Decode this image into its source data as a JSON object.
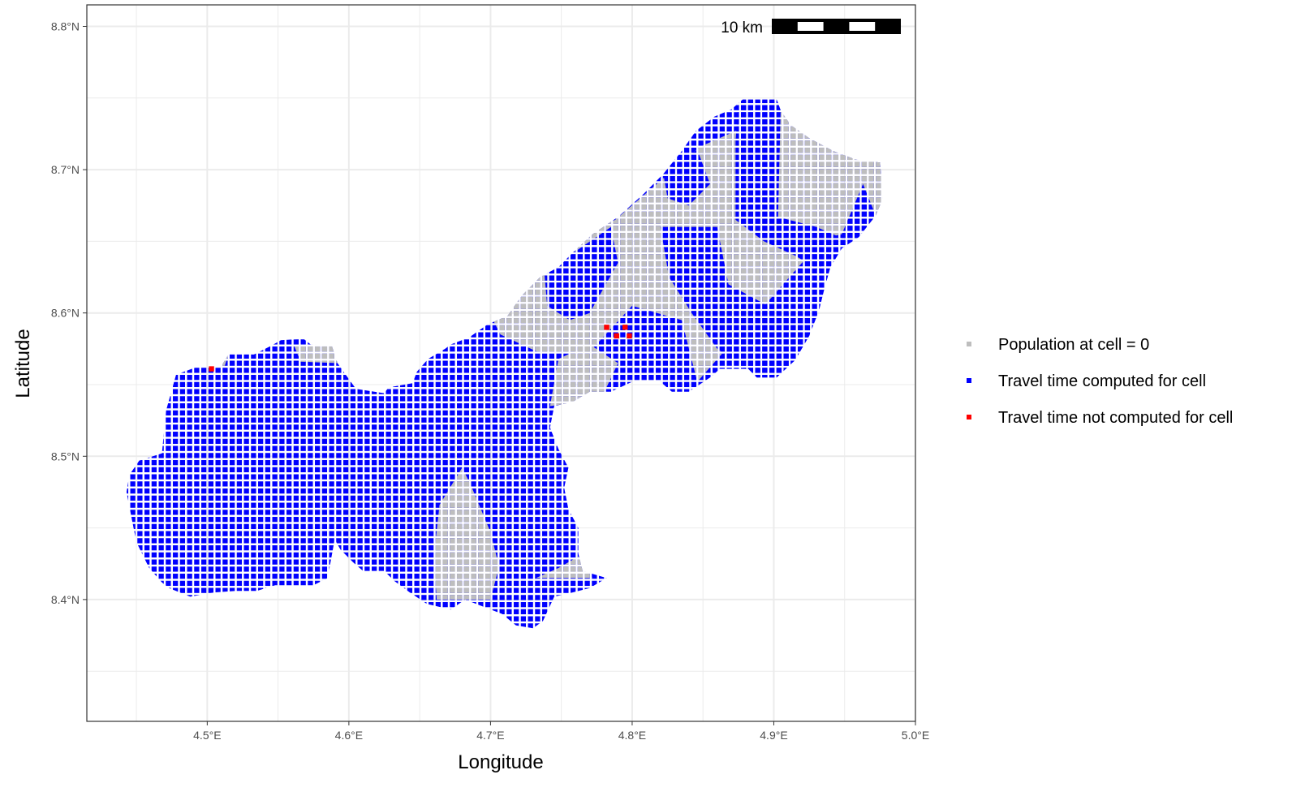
{
  "chart_data": {
    "type": "map",
    "xlabel": "Longitude",
    "ylabel": "Latitude",
    "xlim": [
      4.415,
      5.0
    ],
    "ylim": [
      8.315,
      8.815
    ],
    "x_ticks": [
      {
        "value": 4.5,
        "label": "4.5°E"
      },
      {
        "value": 4.6,
        "label": "4.6°E"
      },
      {
        "value": 4.7,
        "label": "4.7°E"
      },
      {
        "value": 4.8,
        "label": "4.8°E"
      },
      {
        "value": 4.9,
        "label": "4.9°E"
      },
      {
        "value": 5.0,
        "label": "5.0°E"
      }
    ],
    "y_ticks": [
      {
        "value": 8.4,
        "label": "8.4°N"
      },
      {
        "value": 8.5,
        "label": "8.5°N"
      },
      {
        "value": 8.6,
        "label": "8.6°N"
      },
      {
        "value": 8.7,
        "label": "8.7°N"
      },
      {
        "value": 8.8,
        "label": "8.8°N"
      }
    ],
    "grid": true,
    "legend_position": "right",
    "cell_size_deg": 0.005,
    "scale_bar": {
      "label": "10 km",
      "segments": 5
    },
    "legend": [
      {
        "key": "zero",
        "label": "Population at cell = 0",
        "color": "#bebebe"
      },
      {
        "key": "computed",
        "label": "Travel time computed for cell",
        "color": "#0000ff"
      },
      {
        "key": "not_computed",
        "label": "Travel time not computed for cell",
        "color": "#ff0000"
      }
    ],
    "region_outline_lonlat": [
      [
        4.445,
        8.487
      ],
      [
        4.452,
        8.497
      ],
      [
        4.468,
        8.502
      ],
      [
        4.471,
        8.532
      ],
      [
        4.478,
        8.557
      ],
      [
        4.492,
        8.562
      ],
      [
        4.51,
        8.563
      ],
      [
        4.515,
        8.571
      ],
      [
        4.533,
        8.571
      ],
      [
        4.545,
        8.577
      ],
      [
        4.552,
        8.581
      ],
      [
        4.568,
        8.582
      ],
      [
        4.573,
        8.578
      ],
      [
        4.588,
        8.577
      ],
      [
        4.592,
        8.565
      ],
      [
        4.597,
        8.558
      ],
      [
        4.605,
        8.547
      ],
      [
        4.625,
        8.544
      ],
      [
        4.628,
        8.548
      ],
      [
        4.645,
        8.551
      ],
      [
        4.648,
        8.559
      ],
      [
        4.656,
        8.568
      ],
      [
        4.668,
        8.575
      ],
      [
        4.672,
        8.578
      ],
      [
        4.685,
        8.583
      ],
      [
        4.698,
        8.592
      ],
      [
        4.712,
        8.598
      ],
      [
        4.722,
        8.612
      ],
      [
        4.735,
        8.625
      ],
      [
        4.748,
        8.632
      ],
      [
        4.758,
        8.642
      ],
      [
        4.772,
        8.655
      ],
      [
        4.79,
        8.667
      ],
      [
        4.808,
        8.683
      ],
      [
        4.822,
        8.697
      ],
      [
        4.835,
        8.713
      ],
      [
        4.845,
        8.727
      ],
      [
        4.858,
        8.737
      ],
      [
        4.87,
        8.742
      ],
      [
        4.878,
        8.749
      ],
      [
        4.902,
        8.749
      ],
      [
        4.905,
        8.741
      ],
      [
        4.912,
        8.731
      ],
      [
        4.925,
        8.722
      ],
      [
        4.942,
        8.713
      ],
      [
        4.958,
        8.707
      ],
      [
        4.975,
        8.705
      ],
      [
        4.977,
        8.68
      ],
      [
        4.972,
        8.668
      ],
      [
        4.96,
        8.653
      ],
      [
        4.948,
        8.645
      ],
      [
        4.94,
        8.632
      ],
      [
        4.936,
        8.618
      ],
      [
        4.932,
        8.602
      ],
      [
        4.925,
        8.584
      ],
      [
        4.915,
        8.567
      ],
      [
        4.902,
        8.555
      ],
      [
        4.888,
        8.555
      ],
      [
        4.882,
        8.561
      ],
      [
        4.862,
        8.561
      ],
      [
        4.855,
        8.555
      ],
      [
        4.84,
        8.545
      ],
      [
        4.828,
        8.545
      ],
      [
        4.82,
        8.552
      ],
      [
        4.8,
        8.552
      ],
      [
        4.785,
        8.545
      ],
      [
        4.77,
        8.545
      ],
      [
        4.758,
        8.538
      ],
      [
        4.745,
        8.535
      ],
      [
        4.742,
        8.52
      ],
      [
        4.748,
        8.505
      ],
      [
        4.755,
        8.492
      ],
      [
        4.752,
        8.478
      ],
      [
        4.755,
        8.463
      ],
      [
        4.762,
        8.45
      ],
      [
        4.762,
        8.432
      ],
      [
        4.765,
        8.42
      ],
      [
        4.782,
        8.415
      ],
      [
        4.77,
        8.408
      ],
      [
        4.758,
        8.405
      ],
      [
        4.745,
        8.402
      ],
      [
        4.737,
        8.385
      ],
      [
        4.73,
        8.38
      ],
      [
        4.718,
        8.382
      ],
      [
        4.708,
        8.39
      ],
      [
        4.695,
        8.395
      ],
      [
        4.682,
        8.4
      ],
      [
        4.672,
        8.393
      ],
      [
        4.655,
        8.397
      ],
      [
        4.643,
        8.405
      ],
      [
        4.632,
        8.413
      ],
      [
        4.625,
        8.42
      ],
      [
        4.61,
        8.42
      ],
      [
        4.603,
        8.426
      ],
      [
        4.594,
        8.435
      ],
      [
        4.59,
        8.442
      ],
      [
        4.585,
        8.415
      ],
      [
        4.575,
        8.41
      ],
      [
        4.548,
        8.41
      ],
      [
        4.535,
        8.406
      ],
      [
        4.52,
        8.406
      ],
      [
        4.505,
        8.405
      ],
      [
        4.488,
        8.402
      ],
      [
        4.473,
        8.408
      ],
      [
        4.468,
        8.412
      ],
      [
        4.459,
        8.422
      ],
      [
        4.455,
        8.43
      ],
      [
        4.45,
        8.44
      ],
      [
        4.447,
        8.455
      ],
      [
        4.445,
        8.465
      ],
      [
        4.443,
        8.475
      ]
    ],
    "zero_population_patches_lonlat": [
      [
        [
          4.662,
          8.4
        ],
        [
          4.7,
          8.4
        ],
        [
          4.706,
          8.423
        ],
        [
          4.7,
          8.447
        ],
        [
          4.686,
          8.48
        ],
        [
          4.68,
          8.492
        ],
        [
          4.664,
          8.466
        ],
        [
          4.66,
          8.43
        ]
      ],
      [
        [
          4.732,
          8.415
        ],
        [
          4.772,
          8.415
        ],
        [
          4.762,
          8.43
        ],
        [
          4.748,
          8.422
        ]
      ],
      [
        [
          4.846,
          8.552
        ],
        [
          4.935,
          8.652
        ],
        [
          4.978,
          8.662
        ],
        [
          4.975,
          8.705
        ],
        [
          4.905,
          8.741
        ],
        [
          4.848,
          8.716
        ],
        [
          4.788,
          8.665
        ],
        [
          4.72,
          8.634
        ],
        [
          4.688,
          8.622
        ],
        [
          4.707,
          8.585
        ],
        [
          4.735,
          8.572
        ],
        [
          4.77,
          8.573
        ],
        [
          4.8,
          8.605
        ],
        [
          4.835,
          8.595
        ]
      ],
      [
        [
          4.742,
          8.535
        ],
        [
          4.778,
          8.54
        ],
        [
          4.79,
          8.565
        ],
        [
          4.77,
          8.578
        ],
        [
          4.748,
          8.568
        ]
      ],
      [
        [
          4.494,
          8.562
        ],
        [
          4.512,
          8.562
        ],
        [
          4.515,
          8.571
        ],
        [
          4.492,
          8.569
        ]
      ],
      [
        [
          4.561,
          8.578
        ],
        [
          4.59,
          8.578
        ],
        [
          4.592,
          8.565
        ],
        [
          4.566,
          8.566
        ]
      ]
    ],
    "computed_patches_lonlat": [
      [
        [
          4.875,
          8.748
        ],
        [
          4.905,
          8.748
        ],
        [
          4.903,
          8.667
        ],
        [
          4.93,
          8.66
        ],
        [
          4.965,
          8.645
        ],
        [
          4.972,
          8.668
        ],
        [
          4.963,
          8.69
        ],
        [
          4.948,
          8.655
        ],
        [
          4.932,
          8.63
        ],
        [
          4.915,
          8.64
        ],
        [
          4.893,
          8.65
        ],
        [
          4.873,
          8.665
        ],
        [
          4.873,
          8.72
        ]
      ],
      [
        [
          4.82,
          8.66
        ],
        [
          4.86,
          8.66
        ],
        [
          4.868,
          8.62
        ],
        [
          4.905,
          8.6
        ],
        [
          4.935,
          8.6
        ],
        [
          4.93,
          8.58
        ],
        [
          4.915,
          8.567
        ],
        [
          4.902,
          8.555
        ],
        [
          4.888,
          8.555
        ],
        [
          4.86,
          8.575
        ],
        [
          4.842,
          8.6
        ],
        [
          4.826,
          8.625
        ]
      ],
      [
        [
          4.737,
          8.64
        ],
        [
          4.76,
          8.643
        ],
        [
          4.785,
          8.66
        ],
        [
          4.79,
          8.635
        ],
        [
          4.77,
          8.6
        ],
        [
          4.756,
          8.595
        ],
        [
          4.74,
          8.605
        ]
      ],
      [
        [
          4.822,
          8.697
        ],
        [
          4.846,
          8.714
        ],
        [
          4.855,
          8.69
        ],
        [
          4.84,
          8.675
        ],
        [
          4.825,
          8.68
        ]
      ]
    ],
    "not_computed_cells_lonlat": [
      [
        4.503,
        8.561
      ],
      [
        4.782,
        8.59
      ],
      [
        4.795,
        8.59
      ],
      [
        4.789,
        8.584
      ],
      [
        4.798,
        8.584
      ]
    ]
  }
}
